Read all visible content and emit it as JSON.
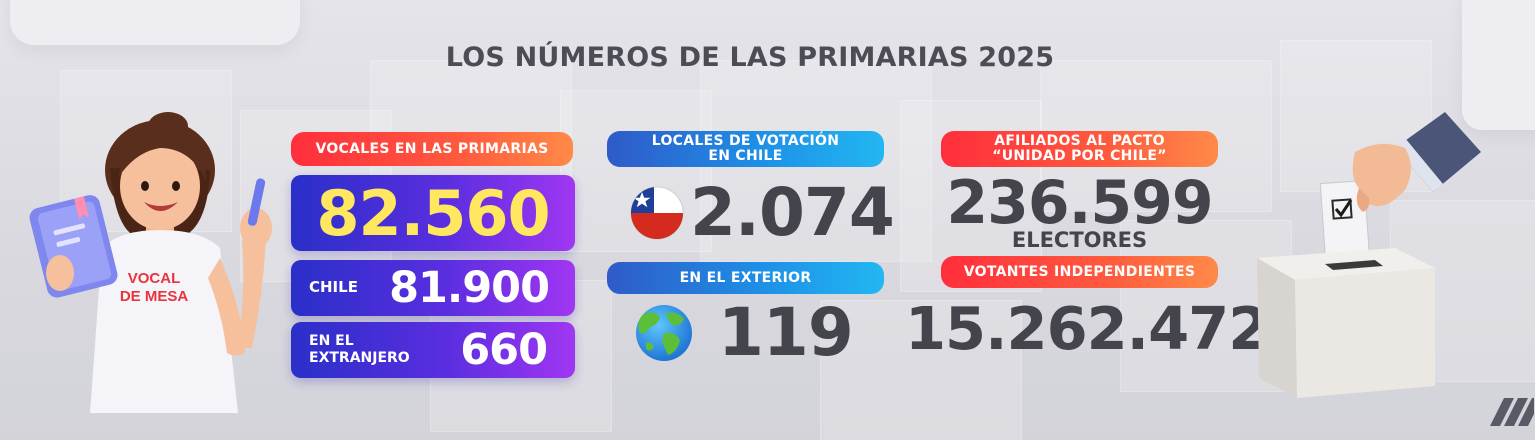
{
  "title": "LOS NÚMEROS DE LAS PRIMARIAS 2025",
  "colors": {
    "orange_pill": "#ff4a3e",
    "blue_pill": "#1e8fe6",
    "purple_box": "#5b2ee0",
    "yellow_number": "#ffe760",
    "number_gray": "#44444d"
  },
  "vocales": {
    "header": "VOCALES EN LAS PRIMARIAS",
    "total": "82.560",
    "chile_label": "CHILE",
    "chile_value": "81.900",
    "extranjero_label_1": "EN EL",
    "extranjero_label_2": "EXTRANJERO",
    "extranjero_value": "660"
  },
  "locales": {
    "header_line1": "LOCALES DE VOTACIÓN",
    "header_line2": "EN CHILE",
    "chile_value": "2.074",
    "chile_icon": "chile-flag-icon",
    "exterior_header": "EN EL EXTERIOR",
    "exterior_value": "119",
    "exterior_icon": "globe-icon"
  },
  "afiliados": {
    "header_line1": "AFILIADOS AL PACTO",
    "header_line2": "“UNIDAD POR CHILE”",
    "value": "236.599",
    "unit": "ELECTORES"
  },
  "independientes": {
    "header": "VOTANTES INDEPENDIENTES",
    "value": "15.262.472"
  },
  "illustration": {
    "shirt_line1": "VOCAL",
    "shirt_line2": "DE MESA"
  }
}
